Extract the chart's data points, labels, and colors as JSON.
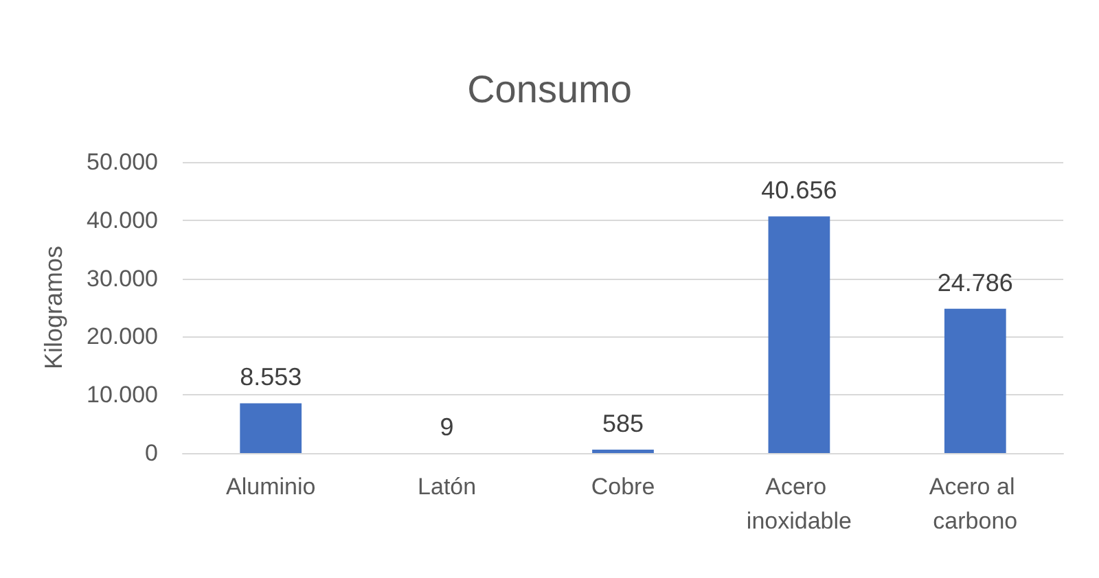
{
  "chart_data": {
    "type": "bar",
    "title": "Consumo",
    "ylabel": "Kilogramos",
    "categories": [
      "Aluminio",
      "Latón",
      "Cobre",
      "Acero inoxidable",
      "Acero al carbono"
    ],
    "values": [
      8553,
      9,
      585,
      40656,
      24786
    ],
    "value_labels": [
      "8.553",
      "9",
      "585",
      "40.656",
      "24.786"
    ],
    "color": "#4472c4",
    "ylim": [
      0,
      50000
    ],
    "yticks": [
      0,
      {
        "value": 10000,
        "label": "10.000"
      },
      {
        "value": 20000,
        "label": "20.000"
      },
      {
        "value": 30000,
        "label": "30.000"
      },
      {
        "value": 40000,
        "label": "40.000"
      },
      {
        "value": 50000,
        "label": "50.000"
      }
    ],
    "grid": true
  }
}
